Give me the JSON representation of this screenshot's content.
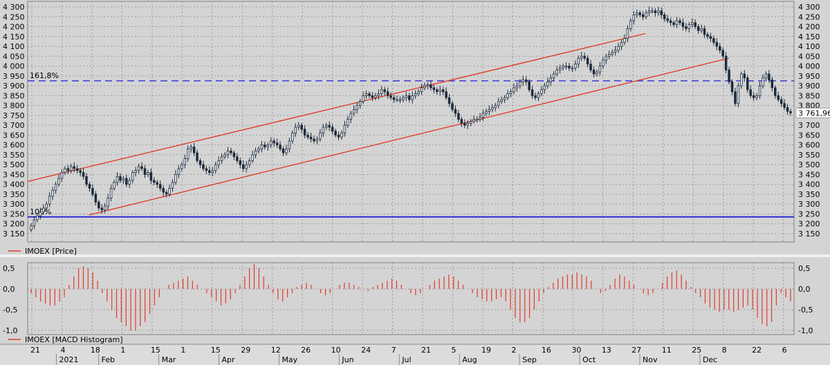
{
  "colors": {
    "background": "#d4d4d4",
    "grid": "#9a9a9a",
    "candle": "#1c2a3a",
    "channel": "#e03a2a",
    "fib_line": "#2a2ad8",
    "hist": "#e03a2a",
    "last_price_box": "#ffffff",
    "last_price_text": "#e03a2a"
  },
  "price_panel": {
    "legend": "IMOEX [Price]",
    "last_price_label": "3 761,96",
    "fib_levels": [
      {
        "label": "161,8%",
        "value": 3925,
        "style": "dashed"
      },
      {
        "label": "100%",
        "value": 3235,
        "style": "solid"
      }
    ],
    "channel_lines": [
      {
        "name": "upper",
        "from": {
          "x": 0.0,
          "y": 3415
        },
        "to": {
          "x": 0.806,
          "y": 4165
        }
      },
      {
        "name": "lower",
        "from": {
          "x": 0.08,
          "y": 3245
        },
        "to": {
          "x": 0.915,
          "y": 4040
        }
      }
    ]
  },
  "macd_panel": {
    "legend": "IMOEX [MACD Histogram]"
  },
  "x_axis": {
    "day_labels": [
      "21",
      "4",
      "18",
      "1",
      "15",
      "1",
      "15",
      "29",
      "12",
      "26",
      "10",
      "24",
      "7",
      "21",
      "5",
      "19",
      "2",
      "16",
      "30",
      "13",
      "27",
      "11",
      "25",
      "8",
      "22",
      "6"
    ],
    "month_labels": [
      "2021",
      "Feb",
      "Mar",
      "Apr",
      "May",
      "Jun",
      "Jul",
      "Aug",
      "Sep",
      "Oct",
      "Nov",
      "Dec"
    ]
  },
  "chart_data": [
    {
      "type": "candlestick",
      "title": "",
      "series_name": "IMOEX",
      "ylim": [
        3150,
        4300
      ],
      "yticks": [
        "3 150",
        "3 200",
        "3 250",
        "3 300",
        "3 350",
        "3 400",
        "3 450",
        "3 500",
        "3 550",
        "3 600",
        "3 650",
        "3 700",
        "3 750",
        "3 800",
        "3 850",
        "3 900",
        "3 950",
        "4 000",
        "4 050",
        "4 100",
        "4 150",
        "4 200",
        "4 250",
        "4 300"
      ],
      "x_range": [
        "2020-12-21",
        "2021-12-10"
      ],
      "grid": true,
      "close": [
        3190,
        3220,
        3240,
        3260,
        3280,
        3300,
        3340,
        3370,
        3400,
        3430,
        3460,
        3480,
        3470,
        3490,
        3480,
        3470,
        3460,
        3440,
        3400,
        3380,
        3350,
        3310,
        3280,
        3270,
        3290,
        3330,
        3380,
        3410,
        3440,
        3420,
        3430,
        3400,
        3420,
        3460,
        3470,
        3490,
        3480,
        3450,
        3460,
        3420,
        3410,
        3400,
        3380,
        3360,
        3350,
        3380,
        3410,
        3450,
        3480,
        3500,
        3530,
        3580,
        3590,
        3560,
        3520,
        3500,
        3480,
        3470,
        3460,
        3470,
        3500,
        3520,
        3540,
        3550,
        3570,
        3560,
        3540,
        3520,
        3500,
        3480,
        3500,
        3520,
        3550,
        3570,
        3580,
        3600,
        3590,
        3600,
        3620,
        3610,
        3600,
        3580,
        3560,
        3580,
        3620,
        3660,
        3690,
        3700,
        3680,
        3650,
        3640,
        3630,
        3620,
        3630,
        3660,
        3690,
        3700,
        3690,
        3670,
        3650,
        3640,
        3660,
        3700,
        3730,
        3760,
        3780,
        3800,
        3820,
        3850,
        3860,
        3850,
        3840,
        3850,
        3860,
        3880,
        3870,
        3850,
        3840,
        3830,
        3830,
        3830,
        3840,
        3850,
        3830,
        3850,
        3860,
        3870,
        3890,
        3900,
        3905,
        3890,
        3880,
        3870,
        3880,
        3870,
        3840,
        3810,
        3780,
        3760,
        3730,
        3710,
        3700,
        3710,
        3720,
        3730,
        3730,
        3740,
        3760,
        3770,
        3780,
        3790,
        3800,
        3820,
        3830,
        3840,
        3860,
        3870,
        3890,
        3900,
        3920,
        3930,
        3920,
        3880,
        3850,
        3840,
        3860,
        3880,
        3900,
        3920,
        3940,
        3960,
        3980,
        3990,
        4000,
        4000,
        3990,
        3990,
        4010,
        4040,
        4050,
        4040,
        4010,
        3980,
        3960,
        3970,
        4000,
        4030,
        4050,
        4060,
        4070,
        4080,
        4100,
        4120,
        4140,
        4190,
        4230,
        4260,
        4270,
        4260,
        4250,
        4270,
        4280,
        4280,
        4270,
        4280,
        4260,
        4240,
        4230,
        4220,
        4210,
        4230,
        4220,
        4200,
        4190,
        4210,
        4220,
        4200,
        4180,
        4190,
        4160,
        4150,
        4140,
        4120,
        4100,
        4080,
        4050,
        3980,
        3920,
        3870,
        3810,
        3900,
        3960,
        3940,
        3880,
        3850,
        3840,
        3850,
        3900,
        3940,
        3960,
        3930,
        3890,
        3850,
        3830,
        3810,
        3790,
        3770,
        3762
      ],
      "macd_histogram": {
        "ylim": [
          -1.0,
          0.5
        ],
        "yticks": [
          "0,5",
          "0,0",
          "-0,5",
          "-1,0"
        ],
        "values": [
          -0.1,
          -0.2,
          -0.3,
          -0.35,
          -0.4,
          -0.4,
          -0.3,
          -0.2,
          0.1,
          0.3,
          0.5,
          0.55,
          0.5,
          0.4,
          0.2,
          -0.1,
          -0.3,
          -0.5,
          -0.7,
          -0.8,
          -0.9,
          -1.0,
          -1.0,
          -0.9,
          -0.8,
          -0.6,
          -0.4,
          -0.2,
          0.0,
          0.1,
          0.15,
          0.2,
          0.25,
          0.3,
          0.2,
          0.1,
          0.0,
          -0.1,
          -0.2,
          -0.3,
          -0.4,
          -0.35,
          -0.25,
          -0.1,
          0.1,
          0.3,
          0.5,
          0.6,
          0.5,
          0.3,
          0.1,
          -0.1,
          -0.25,
          -0.3,
          -0.2,
          -0.1,
          0.05,
          0.1,
          0.15,
          0.1,
          0.0,
          -0.1,
          -0.15,
          -0.1,
          0.0,
          0.1,
          0.15,
          0.15,
          0.1,
          0.05,
          0.0,
          -0.05,
          0.05,
          0.1,
          0.15,
          0.2,
          0.25,
          0.2,
          0.1,
          0.0,
          -0.1,
          -0.15,
          -0.1,
          0.0,
          0.1,
          0.2,
          0.25,
          0.3,
          0.35,
          0.3,
          0.2,
          0.1,
          0.0,
          -0.1,
          -0.2,
          -0.25,
          -0.3,
          -0.3,
          -0.25,
          -0.2,
          -0.3,
          -0.5,
          -0.7,
          -0.8,
          -0.8,
          -0.7,
          -0.5,
          -0.3,
          -0.1,
          0.05,
          0.15,
          0.25,
          0.3,
          0.35,
          0.35,
          0.4,
          0.35,
          0.3,
          0.2,
          0.0,
          -0.1,
          -0.05,
          0.1,
          0.25,
          0.35,
          0.3,
          0.2,
          0.1,
          0.0,
          -0.1,
          -0.15,
          -0.1,
          0.0,
          0.15,
          0.3,
          0.4,
          0.45,
          0.35,
          0.2,
          0.05,
          -0.1,
          -0.2,
          -0.35,
          -0.45,
          -0.5,
          -0.55,
          -0.5,
          -0.5,
          -0.55,
          -0.5,
          -0.45,
          -0.4,
          -0.5,
          -0.7,
          -0.85,
          -0.9,
          -0.8,
          -0.4,
          -0.1,
          -0.2,
          -0.3
        ]
      }
    }
  ]
}
